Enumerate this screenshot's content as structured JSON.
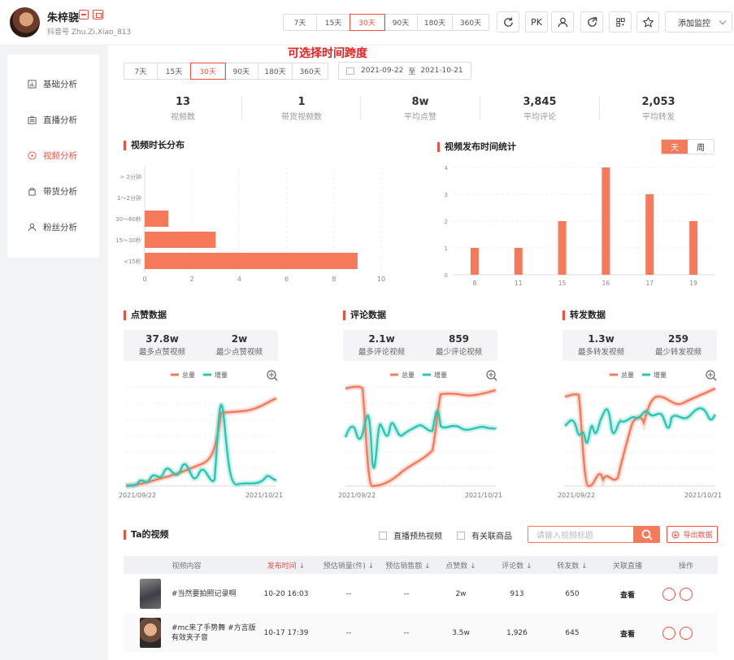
{
  "user": {
    "name": "朱梓骁",
    "id_label": "抖音号 Zhu.Zi.Xiao_813"
  },
  "header_ranges": [
    "7天",
    "15天",
    "30天",
    "90天",
    "180天",
    "360天"
  ],
  "header_range_active": "30天",
  "header_buttons": {
    "pk_label": "PK",
    "monitor_label": "添加监控"
  },
  "sidebar": {
    "items": [
      {
        "label": "基础分析",
        "icon": "bar-chart-icon"
      },
      {
        "label": "直播分析",
        "icon": "live-tv-icon"
      },
      {
        "label": "视频分析",
        "icon": "play-circle-icon"
      },
      {
        "label": "带货分析",
        "icon": "shopping-bag-icon"
      },
      {
        "label": "粉丝分析",
        "icon": "user-icon"
      }
    ],
    "active": "视频分析"
  },
  "annotation": "可选择时间跨度",
  "main_ranges": [
    "7天",
    "15天",
    "30天",
    "90天",
    "180天",
    "360天"
  ],
  "main_range_active": "30天",
  "date_range": {
    "start": "2021-09-22",
    "sep": "至",
    "end": "2021-10-21"
  },
  "stats": [
    {
      "value": "13",
      "label": "视频数"
    },
    {
      "value": "1",
      "label": "带货视频数"
    },
    {
      "value": "8w",
      "label": "平均点赞"
    },
    {
      "value": "3,845",
      "label": "平均评论"
    },
    {
      "value": "2,053",
      "label": "平均转发"
    }
  ],
  "duration_section": {
    "title": "视频时长分布"
  },
  "publish_section": {
    "title": "视频发布时间统计",
    "toggle": [
      "天",
      "周"
    ],
    "toggle_active": "天"
  },
  "like_section": {
    "title": "点赞数据",
    "max_value": "37.8w",
    "max_label": "最多点赞视频",
    "min_value": "2w",
    "min_label": "最少点赞视频"
  },
  "comment_section": {
    "title": "评论数据",
    "max_value": "2.1w",
    "max_label": "最多评论视频",
    "min_value": "859",
    "min_label": "最少评论视频"
  },
  "share_section": {
    "title": "转发数据",
    "max_value": "1.3w",
    "max_label": "最多转发视频",
    "min_value": "259",
    "min_label": "最少转发视频"
  },
  "trend_legend": {
    "total": "总量",
    "increment": "增量"
  },
  "trend_x": {
    "start": "2021/09/22",
    "end": "2021/10/21"
  },
  "colors": {
    "accent": "#f0503c",
    "bar": "#f6795a",
    "teal": "#2bc6b4"
  },
  "chart_data": [
    {
      "type": "bar",
      "orientation": "horizontal",
      "categories": [
        "> 2分钟",
        "1～2分钟",
        "30～60秒",
        "15～30秒",
        "<15秒"
      ],
      "values": [
        0,
        0,
        1,
        3,
        9
      ],
      "xlim": [
        0,
        10
      ],
      "xticks": [
        "0",
        "2",
        "4",
        "6",
        "8",
        "10"
      ]
    },
    {
      "type": "bar",
      "categories": [
        "8",
        "11",
        "15",
        "16",
        "17",
        "19"
      ],
      "values": [
        1,
        1,
        2,
        4,
        3,
        2
      ],
      "ylim": [
        0,
        4
      ],
      "yticks": [
        "0",
        "1",
        "2",
        "3",
        "4"
      ]
    }
  ],
  "video_list": {
    "title": "Ta的视频",
    "filters": [
      "直播预热视频",
      "有关联商品"
    ],
    "search_placeholder": "请输入视频标题",
    "export_label": "导出数据",
    "columns": [
      "视频内容",
      "发布时间 ↓",
      "预估销量(件) ↓",
      "预估销售额 ↓",
      "点赞数 ↓",
      "评论数 ↓",
      "转发数 ↓",
      "关联直播",
      "操作"
    ],
    "rows": [
      {
        "title": "#当然要拍照记录啊",
        "time": "10-20 16:03",
        "sales": "--",
        "amount": "--",
        "likes": "2w",
        "comments": "913",
        "shares": "650",
        "live": "查看"
      },
      {
        "title": "#mc来了手势舞 #方言版 有效夹子音",
        "time": "10-17 17:39",
        "sales": "--",
        "amount": "--",
        "likes": "3.5w",
        "comments": "1,926",
        "shares": "645",
        "live": "查看"
      }
    ]
  }
}
